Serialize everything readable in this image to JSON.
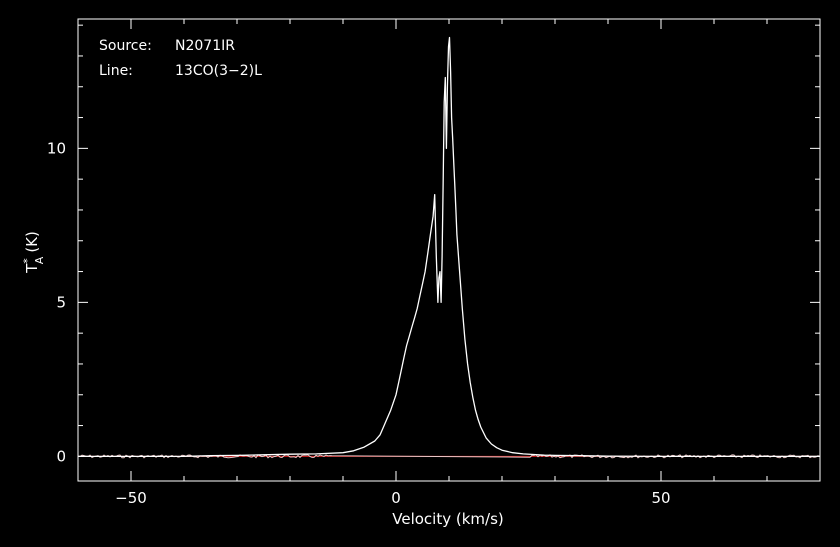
{
  "chart_data": {
    "type": "line",
    "xlabel": "Velocity (km/s)",
    "ylabel_main": "T",
    "ylabel_sup": "*",
    "ylabel_sub": "A",
    "ylabel_unit": "(K)",
    "xlim": [
      -60,
      80
    ],
    "ylim": [
      -0.8,
      14.2
    ],
    "xticks": [
      -50,
      0,
      50
    ],
    "xtick_labels": [
      "−50",
      "0",
      "50"
    ],
    "yticks": [
      0,
      5,
      10
    ],
    "ytick_labels": [
      "0",
      "5",
      "10"
    ],
    "annotations": [
      {
        "key": "Source:",
        "value": "N2071IR"
      },
      {
        "key": "Line:",
        "value": "13CO(3−2)L"
      }
    ],
    "baseline": 0,
    "colors": {
      "spectrum": "#ffffff",
      "baseline": "#d01818",
      "axes": "#ffffff",
      "background": "#000000"
    },
    "grid": false,
    "series": [
      {
        "x": [
          -60,
          -55,
          -50,
          -45,
          -40,
          -35,
          -30,
          -25,
          -20,
          -15,
          -10,
          -8,
          -6,
          -4,
          -3,
          -2,
          -1,
          0,
          0.5,
          1,
          1.5,
          2,
          2.5,
          3,
          3.5,
          4,
          4.5,
          5,
          5.5,
          6,
          6.5,
          7,
          7.3,
          7.6,
          7.9,
          8.1,
          8.3,
          8.5,
          8.7,
          8.9,
          9.1,
          9.3,
          9.5,
          9.7,
          9.9,
          10.1,
          10.3,
          10.5,
          10.7,
          10.9,
          11.1,
          11.3,
          11.5,
          12,
          12.5,
          13,
          13.5,
          14,
          14.5,
          15,
          15.5,
          16,
          17,
          18,
          19,
          20,
          22,
          24,
          26,
          28,
          30,
          35,
          40,
          50,
          60,
          70,
          80
        ],
        "y": [
          0,
          0,
          0,
          0,
          0,
          0.02,
          0.03,
          0.05,
          0.07,
          0.08,
          0.12,
          0.18,
          0.3,
          0.5,
          0.7,
          1.1,
          1.5,
          2.0,
          2.4,
          2.8,
          3.2,
          3.6,
          3.9,
          4.2,
          4.5,
          4.8,
          5.2,
          5.6,
          6.0,
          6.6,
          7.2,
          7.8,
          8.5,
          6.5,
          5.0,
          5.8,
          6.0,
          5.0,
          6.5,
          9.0,
          11.5,
          12.3,
          10.0,
          12.0,
          13.3,
          13.6,
          12.5,
          11.0,
          10.3,
          9.5,
          8.8,
          8.0,
          7.2,
          6.0,
          4.8,
          3.8,
          3.0,
          2.4,
          1.9,
          1.5,
          1.2,
          0.95,
          0.6,
          0.4,
          0.28,
          0.2,
          0.12,
          0.08,
          0.06,
          0.04,
          0.03,
          0.02,
          0.01,
          0,
          0,
          0,
          0
        ]
      }
    ]
  }
}
